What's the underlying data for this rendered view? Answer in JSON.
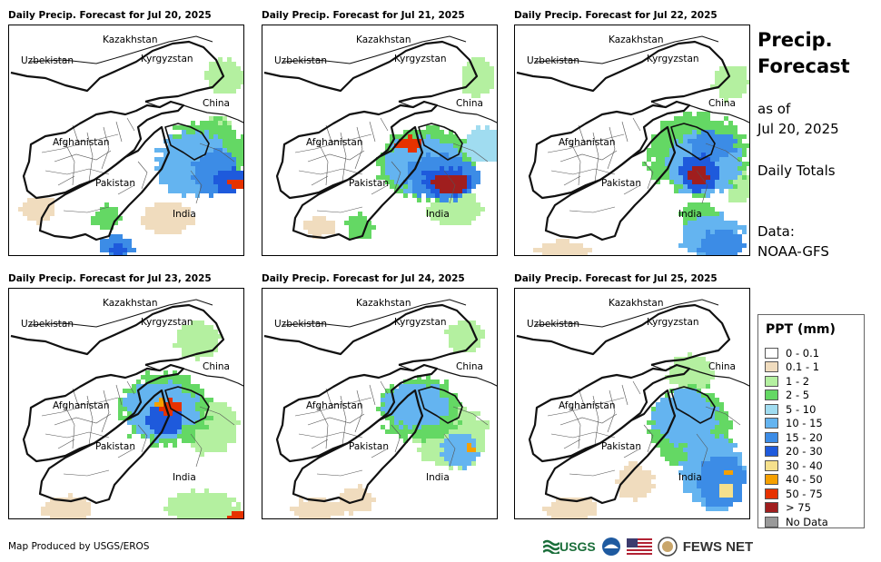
{
  "panels": [
    {
      "title": "Daily Precip. Forecast for Jul 20, 2025"
    },
    {
      "title": "Daily Precip. Forecast for Jul 21, 2025"
    },
    {
      "title": "Daily Precip. Forecast for Jul 22, 2025"
    },
    {
      "title": "Daily Precip. Forecast for Jul 23, 2025"
    },
    {
      "title": "Daily Precip. Forecast for Jul 24, 2025"
    },
    {
      "title": "Daily Precip. Forecast for Jul 25, 2025"
    }
  ],
  "map_labels": {
    "kazakhstan": "Kazakhstan",
    "uzbekistan": "Uzbekistan",
    "kyrgyzstan": "Kyrgyzstan",
    "china": "China",
    "afghanistan": "Afghanistan",
    "pakistan": "Pakistan",
    "india": "India"
  },
  "side": {
    "title_line1": "Precip.",
    "title_line2": "Forecast",
    "asof_line1": "as of",
    "asof_line2": "Jul 20, 2025",
    "totals": "Daily Totals",
    "data_line1": "Data:",
    "data_line2": "NOAA-GFS"
  },
  "legend": {
    "title": "PPT (mm)",
    "items": [
      {
        "label": "0 - 0.1",
        "color": "#ffffff"
      },
      {
        "label": "0.1 - 1",
        "color": "#f0dcbe"
      },
      {
        "label": "1 - 2",
        "color": "#b4f0a0"
      },
      {
        "label": "2 - 5",
        "color": "#64d864"
      },
      {
        "label": "5 - 10",
        "color": "#a0dcf0"
      },
      {
        "label": "10 - 15",
        "color": "#64b4f0"
      },
      {
        "label": "15 - 20",
        "color": "#3c8ce6"
      },
      {
        "label": "20 - 30",
        "color": "#1e5adc"
      },
      {
        "label": "30 - 40",
        "color": "#f5e08c"
      },
      {
        "label": "40 - 50",
        "color": "#f5a000"
      },
      {
        "label": "50 - 75",
        "color": "#e63200"
      },
      {
        "label": "> 75",
        "color": "#a01e1e"
      },
      {
        "label": "No Data",
        "color": "#999999"
      }
    ]
  },
  "credit": "Map Produced by USGS/EROS",
  "logos": {
    "usgs": "USGS",
    "fewsnet": "FEWS NET"
  }
}
